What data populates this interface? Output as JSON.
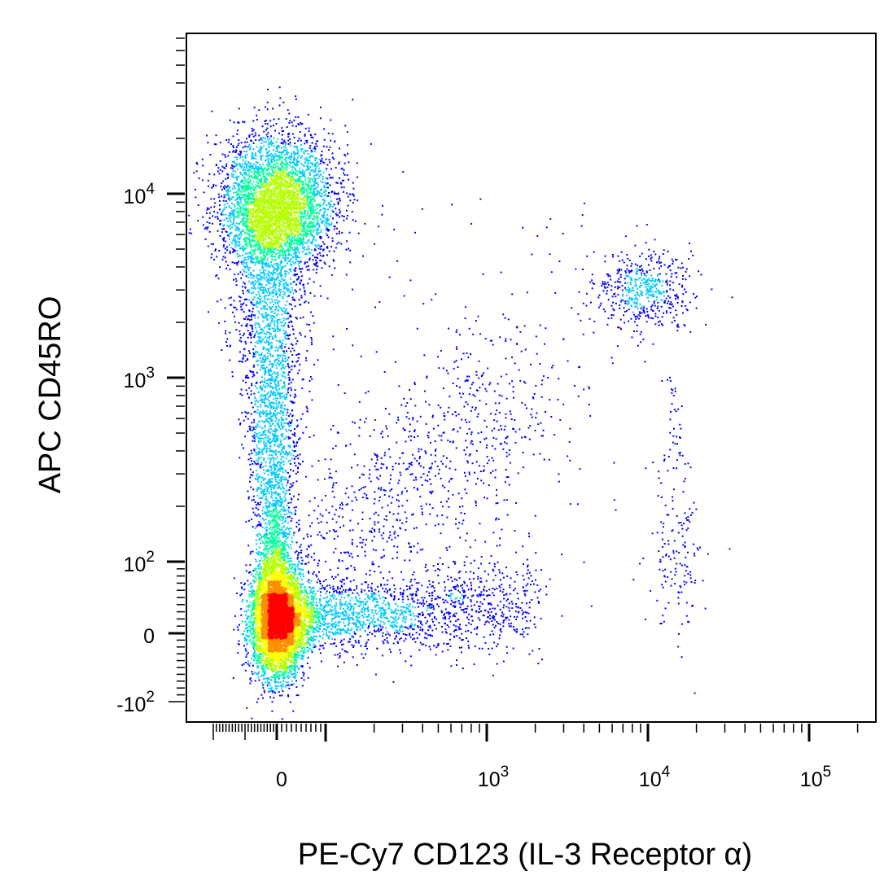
{
  "chart_data": {
    "type": "scatter",
    "style": "flow-cytometry density dot plot (pseudocolor)",
    "title": "",
    "xlabel": "PE-Cy7 CD123 (IL-3 Receptor α)",
    "ylabel": "APC  CD45RO",
    "x_scale": "biexponential",
    "y_scale": "biexponential",
    "xlim": [
      -200,
      220000
    ],
    "ylim": [
      -200,
      80000
    ],
    "x_ticks": [
      {
        "value": 0,
        "base": "0",
        "exp": ""
      },
      {
        "value": 1000,
        "base": "10",
        "exp": "3"
      },
      {
        "value": 10000,
        "base": "10",
        "exp": "4"
      },
      {
        "value": 100000,
        "base": "10",
        "exp": "5"
      }
    ],
    "y_ticks": [
      {
        "value": -100,
        "base": "-10",
        "exp": "2"
      },
      {
        "value": 0,
        "base": "0",
        "exp": ""
      },
      {
        "value": 100,
        "base": "10",
        "exp": "2"
      },
      {
        "value": 1000,
        "base": "10",
        "exp": "3"
      },
      {
        "value": 10000,
        "base": "10",
        "exp": "4"
      }
    ],
    "density_colors": [
      "#0000ff",
      "#00c8ff",
      "#00ff9c",
      "#b4ff00",
      "#ffff00",
      "#ff8c00",
      "#ff0000"
    ],
    "populations": [
      {
        "x_center": 0,
        "y_center": 20,
        "x_spread": 15,
        "y_spread": 60,
        "relative_density": "highest"
      },
      {
        "x_center": 0,
        "y_center": 9000,
        "x_spread": 25,
        "y_spread": 0.35,
        "relative_density": "high"
      },
      {
        "x_center": 9500,
        "y_center": 3000,
        "x_spread": 0.16,
        "y_spread": 0.18,
        "relative_density": "low"
      },
      {
        "x_center": 15000,
        "y_center": 90,
        "x_spread": 0.15,
        "y_spread": 80,
        "relative_density": "sparse"
      }
    ],
    "grid": false,
    "legend": "none"
  }
}
